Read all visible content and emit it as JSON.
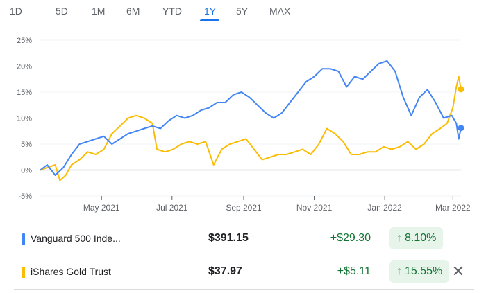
{
  "range_tabs": [
    {
      "label": "1D"
    },
    {
      "label": "5D"
    },
    {
      "label": "1M"
    },
    {
      "label": "6M"
    },
    {
      "label": "YTD"
    },
    {
      "label": "1Y"
    },
    {
      "label": "5Y"
    },
    {
      "label": "MAX"
    }
  ],
  "active_tab": "1Y",
  "colors": {
    "vanguard": "#4285f4",
    "gold": "#fbbc04",
    "accent": "#1a73e8",
    "positive": "#137333",
    "positive_bg": "#e6f4ea"
  },
  "chart_data": {
    "type": "line",
    "y_ticks": [
      "25%",
      "20%",
      "15%",
      "10%",
      "5%",
      "0%",
      "-5%"
    ],
    "x_ticks": [
      "May 2021",
      "Jul 2021",
      "Sep 2021",
      "Nov 2021",
      "Jan 2022",
      "Mar 2022"
    ],
    "ylim": [
      -5,
      25
    ],
    "xlim": [
      "2021-03-09",
      "2022-03-08"
    ],
    "grid": true,
    "series": [
      {
        "name": "Vanguard 500 Inde...",
        "color": "#4285f4",
        "points": [
          [
            "2021-03-09",
            0
          ],
          [
            "2021-03-15",
            1
          ],
          [
            "2021-03-22",
            -1
          ],
          [
            "2021-03-29",
            0.5
          ],
          [
            "2021-04-05",
            3
          ],
          [
            "2021-04-12",
            5
          ],
          [
            "2021-04-19",
            5.5
          ],
          [
            "2021-04-26",
            6
          ],
          [
            "2021-05-03",
            6.5
          ],
          [
            "2021-05-10",
            5
          ],
          [
            "2021-05-17",
            6
          ],
          [
            "2021-05-24",
            7
          ],
          [
            "2021-05-31",
            7.5
          ],
          [
            "2021-06-07",
            8
          ],
          [
            "2021-06-14",
            8.5
          ],
          [
            "2021-06-21",
            8
          ],
          [
            "2021-06-28",
            9.5
          ],
          [
            "2021-07-05",
            10.5
          ],
          [
            "2021-07-12",
            10
          ],
          [
            "2021-07-19",
            10.5
          ],
          [
            "2021-07-26",
            11.5
          ],
          [
            "2021-08-02",
            12
          ],
          [
            "2021-08-09",
            13
          ],
          [
            "2021-08-16",
            13
          ],
          [
            "2021-08-23",
            14.5
          ],
          [
            "2021-08-30",
            15
          ],
          [
            "2021-09-06",
            14
          ],
          [
            "2021-09-13",
            12.5
          ],
          [
            "2021-09-20",
            11
          ],
          [
            "2021-09-27",
            10
          ],
          [
            "2021-10-04",
            11
          ],
          [
            "2021-10-11",
            13
          ],
          [
            "2021-10-18",
            15
          ],
          [
            "2021-10-25",
            17
          ],
          [
            "2021-11-01",
            18
          ],
          [
            "2021-11-08",
            19.5
          ],
          [
            "2021-11-15",
            19.5
          ],
          [
            "2021-11-22",
            19
          ],
          [
            "2021-11-29",
            16
          ],
          [
            "2021-12-06",
            18
          ],
          [
            "2021-12-13",
            17.5
          ],
          [
            "2021-12-20",
            19
          ],
          [
            "2021-12-27",
            20.5
          ],
          [
            "2022-01-03",
            21
          ],
          [
            "2022-01-10",
            19
          ],
          [
            "2022-01-17",
            14
          ],
          [
            "2022-01-24",
            10.5
          ],
          [
            "2022-01-31",
            14
          ],
          [
            "2022-02-07",
            15.5
          ],
          [
            "2022-02-14",
            13
          ],
          [
            "2022-02-21",
            10
          ],
          [
            "2022-02-28",
            10.5
          ],
          [
            "2022-03-04",
            9
          ],
          [
            "2022-03-06",
            6
          ],
          [
            "2022-03-08",
            8.1
          ]
        ]
      },
      {
        "name": "iShares Gold Trust",
        "color": "#fbbc04",
        "points": [
          [
            "2021-03-09",
            0
          ],
          [
            "2021-03-15",
            0.5
          ],
          [
            "2021-03-22",
            1
          ],
          [
            "2021-03-26",
            -2
          ],
          [
            "2021-03-31",
            -1
          ],
          [
            "2021-04-05",
            1
          ],
          [
            "2021-04-12",
            2
          ],
          [
            "2021-04-19",
            3.5
          ],
          [
            "2021-04-26",
            3
          ],
          [
            "2021-05-03",
            4
          ],
          [
            "2021-05-10",
            7
          ],
          [
            "2021-05-17",
            8.5
          ],
          [
            "2021-05-24",
            10
          ],
          [
            "2021-05-31",
            10.5
          ],
          [
            "2021-06-07",
            10
          ],
          [
            "2021-06-14",
            9
          ],
          [
            "2021-06-18",
            4
          ],
          [
            "2021-06-25",
            3.5
          ],
          [
            "2021-07-02",
            4
          ],
          [
            "2021-07-09",
            5
          ],
          [
            "2021-07-16",
            5.5
          ],
          [
            "2021-07-23",
            5
          ],
          [
            "2021-07-30",
            5.5
          ],
          [
            "2021-08-06",
            1
          ],
          [
            "2021-08-13",
            4
          ],
          [
            "2021-08-20",
            5
          ],
          [
            "2021-08-27",
            5.5
          ],
          [
            "2021-09-03",
            6
          ],
          [
            "2021-09-10",
            4
          ],
          [
            "2021-09-17",
            2
          ],
          [
            "2021-09-24",
            2.5
          ],
          [
            "2021-10-01",
            3
          ],
          [
            "2021-10-08",
            3
          ],
          [
            "2021-10-15",
            3.5
          ],
          [
            "2021-10-22",
            4
          ],
          [
            "2021-10-29",
            3
          ],
          [
            "2021-11-05",
            5
          ],
          [
            "2021-11-12",
            8
          ],
          [
            "2021-11-19",
            7
          ],
          [
            "2021-11-26",
            5.5
          ],
          [
            "2021-12-03",
            3
          ],
          [
            "2021-12-10",
            3
          ],
          [
            "2021-12-17",
            3.5
          ],
          [
            "2021-12-24",
            3.5
          ],
          [
            "2021-12-31",
            4.5
          ],
          [
            "2022-01-07",
            4
          ],
          [
            "2022-01-14",
            4.5
          ],
          [
            "2022-01-21",
            5.5
          ],
          [
            "2022-01-28",
            4
          ],
          [
            "2022-02-04",
            5
          ],
          [
            "2022-02-11",
            7
          ],
          [
            "2022-02-18",
            8
          ],
          [
            "2022-02-24",
            9
          ],
          [
            "2022-03-01",
            12
          ],
          [
            "2022-03-04",
            16
          ],
          [
            "2022-03-06",
            18
          ],
          [
            "2022-03-08",
            15.55
          ]
        ]
      }
    ]
  },
  "holdings": [
    {
      "name": "Vanguard 500 Inde...",
      "price": "$391.15",
      "change": "+$29.30",
      "pct": "8.10%",
      "arrow": "↑"
    },
    {
      "name": "iShares Gold Trust",
      "price": "$37.97",
      "change": "+$5.11",
      "pct": "15.55%",
      "arrow": "↑",
      "close": "✕"
    }
  ]
}
